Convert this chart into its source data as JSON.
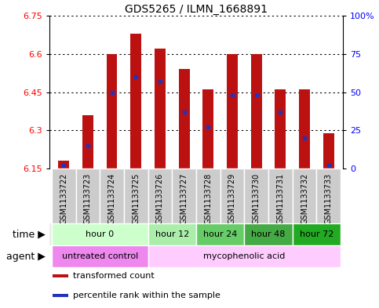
{
  "title": "GDS5265 / ILMN_1668891",
  "samples": [
    "GSM1133722",
    "GSM1133723",
    "GSM1133724",
    "GSM1133725",
    "GSM1133726",
    "GSM1133727",
    "GSM1133728",
    "GSM1133729",
    "GSM1133730",
    "GSM1133731",
    "GSM1133732",
    "GSM1133733"
  ],
  "transformed_counts": [
    6.18,
    6.36,
    6.6,
    6.68,
    6.62,
    6.54,
    6.46,
    6.6,
    6.6,
    6.46,
    6.46,
    6.29
  ],
  "percentile_ranks": [
    2,
    15,
    50,
    60,
    57,
    37,
    27,
    48,
    48,
    37,
    20,
    2
  ],
  "bar_bottom": 6.15,
  "ylim_left": [
    6.15,
    6.75
  ],
  "ylim_right": [
    0,
    100
  ],
  "yticks_left": [
    6.15,
    6.3,
    6.45,
    6.6,
    6.75
  ],
  "ytick_labels_left": [
    "6.15",
    "6.3",
    "6.45",
    "6.6",
    "6.75"
  ],
  "yticks_right": [
    0,
    25,
    50,
    75,
    100
  ],
  "ytick_labels_right": [
    "0",
    "25",
    "50",
    "75",
    "100%"
  ],
  "bar_color": "#bb1111",
  "percentile_color": "#2233bb",
  "sample_bg_color": "#cccccc",
  "time_groups": [
    {
      "label": "hour 0",
      "start": 0,
      "end": 3,
      "color": "#ccffcc"
    },
    {
      "label": "hour 12",
      "start": 4,
      "end": 5,
      "color": "#aaeeaa"
    },
    {
      "label": "hour 24",
      "start": 6,
      "end": 7,
      "color": "#66cc66"
    },
    {
      "label": "hour 48",
      "start": 8,
      "end": 9,
      "color": "#44aa44"
    },
    {
      "label": "hour 72",
      "start": 10,
      "end": 11,
      "color": "#22aa22"
    }
  ],
  "agent_groups": [
    {
      "label": "untreated control",
      "start": 0,
      "end": 3,
      "color": "#ee88ee"
    },
    {
      "label": "mycophenolic acid",
      "start": 4,
      "end": 11,
      "color": "#ffccff"
    }
  ],
  "legend_items": [
    {
      "label": "transformed count",
      "color": "#bb1111",
      "marker": "s"
    },
    {
      "label": "percentile rank within the sample",
      "color": "#2233bb",
      "marker": "s"
    }
  ],
  "xlabel_time": "time",
  "xlabel_agent": "agent",
  "title_fontsize": 10,
  "tick_fontsize": 8,
  "row_label_fontsize": 9,
  "sample_label_fontsize": 7,
  "legend_fontsize": 8
}
